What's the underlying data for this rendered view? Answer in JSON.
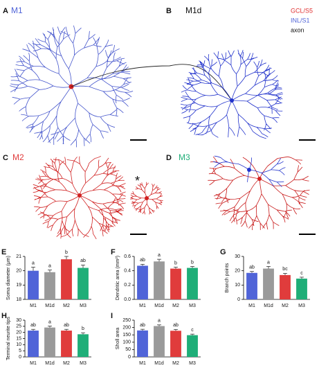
{
  "panels": [
    {
      "letter": "A",
      "label": "M1"
    },
    {
      "letter": "B",
      "label": "M1d"
    },
    {
      "letter": "C",
      "label": "M2"
    },
    {
      "letter": "D",
      "label": "M3"
    }
  ],
  "legend": [
    "GCL/S5",
    "INL/S1",
    "axon"
  ],
  "asterisk": "*",
  "chart_data": [
    {
      "type": "bar",
      "panel": "E",
      "ylabel": "Soma diameter (μm)",
      "categories": [
        "M1",
        "M1d",
        "M2",
        "M3"
      ],
      "values": [
        20.0,
        19.9,
        20.8,
        20.2
      ],
      "errors": [
        0.25,
        0.15,
        0.2,
        0.2
      ],
      "annotations": [
        "a",
        "a",
        "b",
        "ab"
      ],
      "colors": [
        "#5064d8",
        "#9a9a9a",
        "#e03c3c",
        "#1fae78"
      ],
      "ylim": [
        18,
        21
      ],
      "yticks": [
        18,
        19,
        20,
        21
      ]
    },
    {
      "type": "bar",
      "panel": "F",
      "ylabel": "Dendritic area (mm²)",
      "categories": [
        "M1",
        "M1d",
        "M2",
        "M3"
      ],
      "values": [
        0.47,
        0.53,
        0.43,
        0.44
      ],
      "errors": [
        0.02,
        0.03,
        0.02,
        0.02
      ],
      "annotations": [
        "ab",
        "a",
        "b",
        "b"
      ],
      "colors": [
        "#5064d8",
        "#9a9a9a",
        "#e03c3c",
        "#1fae78"
      ],
      "ylim": [
        0,
        0.6
      ],
      "yticks": [
        {
          "value": 0,
          "label": "0.0"
        },
        0.2,
        0.4,
        0.6
      ]
    },
    {
      "type": "bar",
      "panel": "G",
      "ylabel": "Branch points",
      "categories": [
        "M1",
        "M1d",
        "M2",
        "M3"
      ],
      "values": [
        18.5,
        21.5,
        17,
        14.5
      ],
      "errors": [
        1,
        1.5,
        1.2,
        1
      ],
      "annotations": [
        "ab",
        "a",
        "bc",
        "c"
      ],
      "colors": [
        "#5064d8",
        "#9a9a9a",
        "#e03c3c",
        "#1fae78"
      ],
      "ylim": [
        0,
        30
      ],
      "yticks": [
        0,
        10,
        20,
        30
      ]
    },
    {
      "type": "bar",
      "panel": "H",
      "ylabel": "Terminal neurite tips",
      "categories": [
        "M1",
        "M1d",
        "M2",
        "M3"
      ],
      "values": [
        21.5,
        24,
        21.5,
        18.5
      ],
      "errors": [
        1,
        1.2,
        1,
        1.2
      ],
      "annotations": [
        "ab",
        "a",
        "ab",
        "b"
      ],
      "colors": [
        "#5064d8",
        "#9a9a9a",
        "#e03c3c",
        "#1fae78"
      ],
      "ylim": [
        0,
        30
      ],
      "yticks": [
        0,
        5,
        10,
        15,
        20,
        25,
        30
      ]
    },
    {
      "type": "bar",
      "panel": "I",
      "ylabel": "Sholl area",
      "categories": [
        "M1",
        "M1d",
        "M2",
        "M3"
      ],
      "values": [
        180,
        210,
        178,
        148
      ],
      "errors": [
        8,
        8,
        9,
        7
      ],
      "annotations": [
        "ab",
        "a",
        "ab",
        "c"
      ],
      "colors": [
        "#5064d8",
        "#9a9a9a",
        "#e03c3c",
        "#1fae78"
      ],
      "ylim": [
        0,
        250
      ],
      "yticks": [
        0,
        50,
        100,
        150,
        200,
        250
      ]
    }
  ]
}
